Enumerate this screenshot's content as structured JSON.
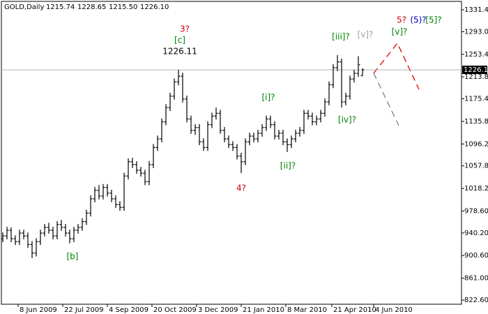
{
  "chart_data": {
    "type": "ohlc",
    "symbol": "GOLD,Daily",
    "header_values": [
      "1215.74",
      "1228.65",
      "1215.50",
      "1226.10"
    ],
    "color": "#000000",
    "grid": false,
    "current_price": {
      "value": 1226.1,
      "label": "1226.10"
    },
    "x": [
      0,
      3,
      6,
      9,
      12,
      15,
      18,
      21,
      24,
      27,
      30,
      33,
      36,
      39,
      42,
      45,
      48,
      51,
      54,
      57,
      60,
      63,
      66,
      69,
      72,
      75,
      78,
      81,
      84,
      87,
      90,
      93,
      96,
      99,
      102,
      105,
      108,
      111,
      114,
      117,
      120,
      123,
      126,
      129,
      132,
      135,
      138,
      141,
      144,
      147,
      150,
      153,
      156,
      159,
      162,
      165,
      168,
      171,
      174,
      177,
      180,
      183,
      186,
      189,
      192,
      195,
      198,
      201,
      204,
      207,
      210,
      213,
      216,
      219,
      222,
      225,
      228,
      231,
      234,
      237,
      240,
      243,
      246,
      249,
      252,
      255,
      258
    ],
    "open": [
      930,
      935,
      945,
      930,
      925,
      940,
      935,
      920,
      905,
      925,
      940,
      950,
      945,
      935,
      955,
      950,
      940,
      930,
      945,
      950,
      960,
      975,
      1000,
      1015,
      1005,
      1020,
      1010,
      1000,
      990,
      985,
      1040,
      1065,
      1060,
      1050,
      1045,
      1030,
      1060,
      1090,
      1105,
      1135,
      1160,
      1180,
      1205,
      1215,
      1175,
      1140,
      1120,
      1125,
      1100,
      1090,
      1130,
      1145,
      1150,
      1120,
      1105,
      1095,
      1090,
      1075,
      1065,
      1100,
      1110,
      1105,
      1115,
      1125,
      1140,
      1130,
      1110,
      1115,
      1100,
      1095,
      1105,
      1115,
      1120,
      1150,
      1145,
      1135,
      1140,
      1150,
      1170,
      1200,
      1230,
      1240,
      1170,
      1180,
      1210,
      1220,
      1215.74
    ],
    "high": [
      941,
      951,
      950,
      936,
      946,
      946,
      941,
      926,
      931,
      946,
      956,
      958,
      951,
      961,
      963,
      956,
      946,
      951,
      956,
      966,
      981,
      1006,
      1021,
      1024,
      1026,
      1026,
      1016,
      1006,
      996,
      1046,
      1071,
      1072,
      1066,
      1056,
      1051,
      1066,
      1096,
      1111,
      1141,
      1166,
      1186,
      1211,
      1226.11,
      1221,
      1181,
      1146,
      1131,
      1131,
      1106,
      1136,
      1151,
      1160,
      1156,
      1126,
      1111,
      1101,
      1096,
      1081,
      1106,
      1116,
      1116,
      1121,
      1131,
      1146,
      1146,
      1136,
      1121,
      1121,
      1106,
      1111,
      1121,
      1126,
      1156,
      1156,
      1151,
      1146,
      1156,
      1176,
      1206,
      1236,
      1252,
      1246,
      1186,
      1216,
      1226,
      1250,
      1228.65
    ],
    "low": [
      924,
      929,
      924,
      919,
      919,
      929,
      914,
      896,
      899,
      919,
      934,
      939,
      929,
      929,
      944,
      934,
      922,
      924,
      939,
      944,
      954,
      969,
      994,
      999,
      999,
      1004,
      994,
      984,
      979,
      979,
      1034,
      1054,
      1044,
      1039,
      1024,
      1024,
      1054,
      1084,
      1099,
      1129,
      1154,
      1174,
      1199,
      1169,
      1134,
      1114,
      1112,
      1094,
      1084,
      1084,
      1124,
      1139,
      1114,
      1099,
      1089,
      1084,
      1069,
      1045,
      1059,
      1094,
      1099,
      1099,
      1109,
      1119,
      1124,
      1104,
      1104,
      1094,
      1082,
      1089,
      1099,
      1109,
      1114,
      1139,
      1129,
      1129,
      1134,
      1144,
      1164,
      1194,
      1224,
      1160,
      1164,
      1174,
      1204,
      1214,
      1215.5
    ],
    "close": [
      935,
      945,
      930,
      925,
      940,
      935,
      920,
      905,
      925,
      940,
      950,
      945,
      935,
      955,
      950,
      940,
      930,
      945,
      950,
      960,
      975,
      1000,
      1015,
      1005,
      1020,
      1010,
      1000,
      990,
      985,
      1040,
      1065,
      1060,
      1050,
      1045,
      1030,
      1060,
      1090,
      1105,
      1135,
      1160,
      1180,
      1205,
      1215,
      1175,
      1140,
      1120,
      1125,
      1100,
      1090,
      1130,
      1145,
      1150,
      1120,
      1105,
      1095,
      1090,
      1075,
      1065,
      1100,
      1110,
      1105,
      1115,
      1125,
      1140,
      1130,
      1110,
      1115,
      1100,
      1095,
      1105,
      1115,
      1120,
      1150,
      1145,
      1135,
      1140,
      1150,
      1170,
      1200,
      1230,
      1240,
      1170,
      1180,
      1210,
      1220,
      1235,
      1226.1
    ],
    "xlim": [
      -1,
      329
    ],
    "xticks": [
      {
        "value": 11,
        "label": "8 Jun 2009"
      },
      {
        "value": 43,
        "label": "22 Jul 2009"
      },
      {
        "value": 75,
        "label": "4 Sep 2009"
      },
      {
        "value": 107,
        "label": "20 Oct 2009"
      },
      {
        "value": 139,
        "label": "3 Dec 2009"
      },
      {
        "value": 171,
        "label": "21 Jan 2010"
      },
      {
        "value": 203,
        "label": "8 Mar 2010"
      },
      {
        "value": 236,
        "label": "21 Apr 2010"
      },
      {
        "value": 266,
        "label": "4 Jun 2010"
      }
    ],
    "ylim": [
      815.26,
      1346.08
    ],
    "yticks": [
      {
        "value": 1331.4,
        "label": "1331.40"
      },
      {
        "value": 1293,
        "label": "1293.00"
      },
      {
        "value": 1253.4,
        "label": "1253.40"
      },
      {
        "value": 1213.8,
        "label": "1213.80"
      },
      {
        "value": 1175.4,
        "label": "1175.40"
      },
      {
        "value": 1135.8,
        "label": "1135.80"
      },
      {
        "value": 1096.2,
        "label": "1096.20"
      },
      {
        "value": 1057.8,
        "label": "1057.80"
      },
      {
        "value": 1018.2,
        "label": "1018.20"
      },
      {
        "value": 978.6,
        "label": "978.60"
      },
      {
        "value": 940.2,
        "label": "940.20"
      },
      {
        "value": 900.6,
        "label": "900.60"
      },
      {
        "value": 861,
        "label": "861.00"
      },
      {
        "value": 822.6,
        "label": "822.60"
      }
    ],
    "annotations": [
      {
        "text": "3?",
        "color": "#d00000"
      },
      {
        "text": "[c]",
        "color": "#008000"
      },
      {
        "text": "1226.11",
        "color": "#000000"
      },
      {
        "text": "[b]",
        "color": "#008000"
      },
      {
        "text": "4?",
        "color": "#d00000"
      },
      {
        "text": "[i]?",
        "color": "#008000"
      },
      {
        "text": "[ii]?",
        "color": "#008000"
      },
      {
        "text": "[iii]?",
        "color": "#008000"
      },
      {
        "text": "[iv]?",
        "color": "#008000"
      },
      {
        "text": "[v]?",
        "color": "#a0a0a0"
      },
      {
        "text": "[v]?",
        "color": "#008000"
      },
      {
        "text": "5?",
        "color": "#d00000"
      },
      {
        "text": "(5)?",
        "color": "#0000c0"
      },
      {
        "text": "[5]?",
        "color": "#008000"
      }
    ]
  }
}
